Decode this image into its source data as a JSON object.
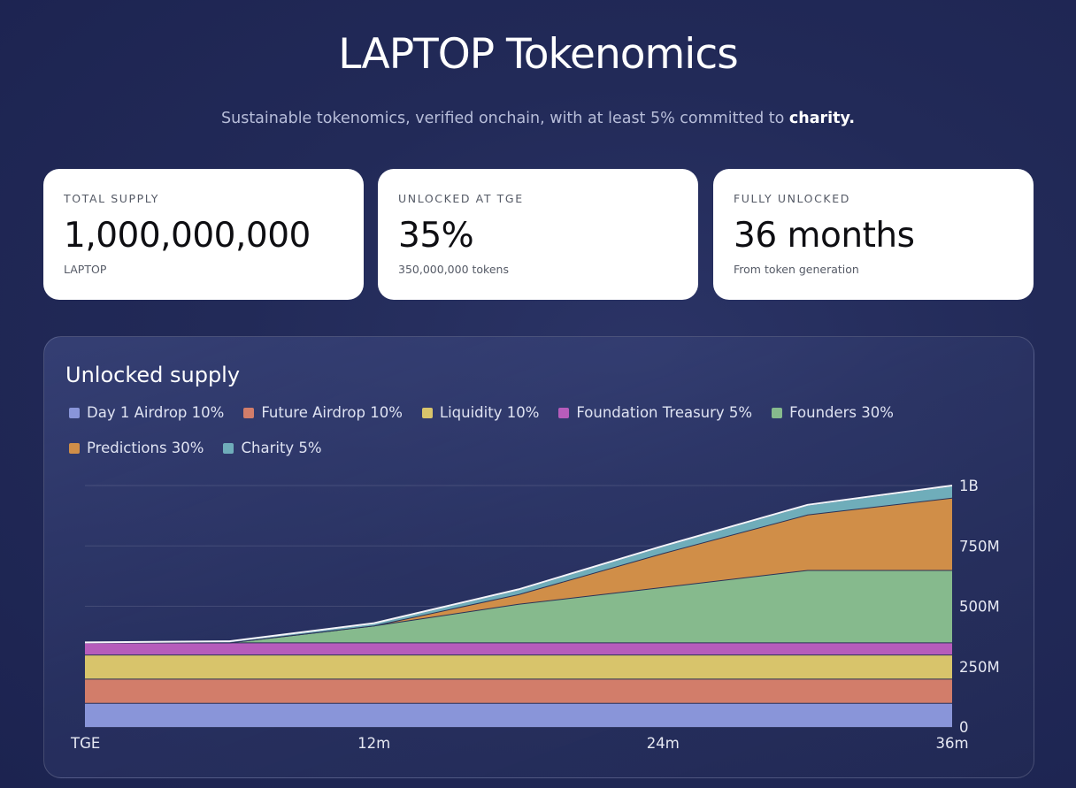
{
  "header": {
    "title": "LAPTOP Tokenomics",
    "subtitle_prefix": "Sustainable tokenomics, verified onchain, with at least 5% committed to ",
    "subtitle_bold": "charity."
  },
  "stats": [
    {
      "label": "TOTAL SUPPLY",
      "value": "1,000,000,000",
      "sub": "LAPTOP"
    },
    {
      "label": "UNLOCKED AT TGE",
      "value": "35%",
      "sub": "350,000,000 tokens"
    },
    {
      "label": "FULLY UNLOCKED",
      "value": "36 months",
      "sub": "From token generation"
    }
  ],
  "chart_data": {
    "type": "area",
    "stacked": true,
    "title": "Unlocked supply",
    "x": [
      0,
      6,
      12,
      18,
      24,
      30,
      36
    ],
    "x_tick_values": [
      0,
      12,
      24,
      36
    ],
    "x_tick_labels": [
      "TGE",
      "12m",
      "24m",
      "36m"
    ],
    "y_tick_values": [
      0,
      250000000,
      500000000,
      750000000,
      1000000000
    ],
    "y_tick_labels": [
      "0",
      "250M",
      "500M",
      "750M",
      "1B"
    ],
    "ylim": [
      0,
      1000000000
    ],
    "grid": true,
    "legend_position": "top-left",
    "series": [
      {
        "name": "Day 1 Airdrop 10%",
        "color": "#8995d9",
        "values": [
          100000000,
          100000000,
          100000000,
          100000000,
          100000000,
          100000000,
          100000000
        ]
      },
      {
        "name": "Future Airdrop 10%",
        "color": "#d27d6a",
        "values": [
          100000000,
          100000000,
          100000000,
          100000000,
          100000000,
          100000000,
          100000000
        ]
      },
      {
        "name": "Liquidity 10%",
        "color": "#d8c46b",
        "values": [
          100000000,
          100000000,
          100000000,
          100000000,
          100000000,
          100000000,
          100000000
        ]
      },
      {
        "name": "Foundation Treasury 5%",
        "color": "#b65cbb",
        "values": [
          50000000,
          50000000,
          50000000,
          50000000,
          50000000,
          50000000,
          50000000
        ]
      },
      {
        "name": "Founders 30%",
        "color": "#86ba8d",
        "values": [
          0,
          0,
          70000000,
          160000000,
          230000000,
          300000000,
          300000000
        ]
      },
      {
        "name": "Predictions 30%",
        "color": "#d08e48",
        "values": [
          0,
          0,
          0,
          40000000,
          140000000,
          230000000,
          300000000
        ]
      },
      {
        "name": "Charity 5%",
        "color": "#6fadba",
        "values": [
          0,
          5000000,
          10000000,
          20000000,
          30000000,
          40000000,
          50000000
        ]
      }
    ]
  }
}
